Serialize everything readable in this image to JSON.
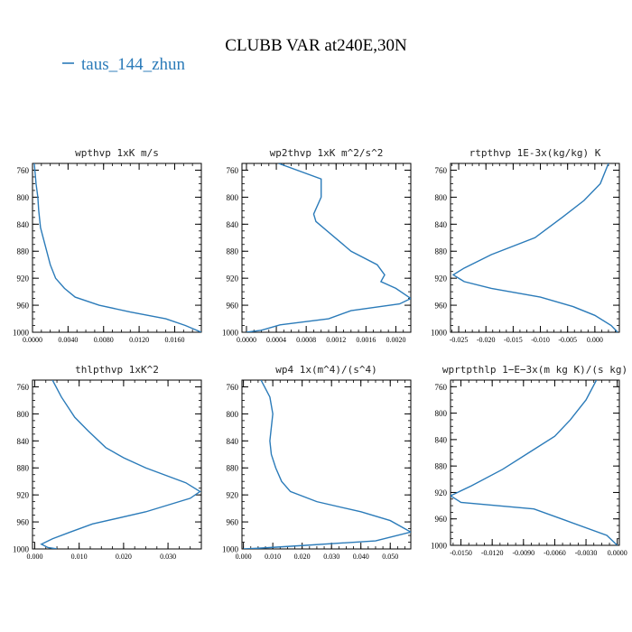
{
  "figure": {
    "title": "CLUBB VAR at240E,30N",
    "legend": {
      "label": "taus_144_zhun",
      "color": "#2b7bb9",
      "placement": "top-left"
    }
  },
  "chart_data": [
    {
      "type": "line",
      "title": "wpthvp  1xK m/s",
      "ylim": [
        1000,
        750
      ],
      "yticks": [
        {
          "v": 760,
          "label": "760"
        },
        {
          "v": 800,
          "label": "800"
        },
        {
          "v": 840,
          "label": "840"
        },
        {
          "v": 880,
          "label": "880"
        },
        {
          "v": 920,
          "label": "920"
        },
        {
          "v": 960,
          "label": "960"
        },
        {
          "v": 1000,
          "label": "1000"
        }
      ],
      "xlim": [
        0.0,
        0.019
      ],
      "xticks": [
        {
          "v": 0.0,
          "label": "0.0000"
        },
        {
          "v": 0.004,
          "label": "0.0040"
        },
        {
          "v": 0.008,
          "label": "0.0080"
        },
        {
          "v": 0.012,
          "label": "0.0120"
        },
        {
          "v": 0.016,
          "label": "0.0160"
        }
      ],
      "series": [
        {
          "color": "#2b7bb9",
          "x": [
            0.0002,
            0.0004,
            0.0006,
            0.0007,
            0.0009,
            0.0012,
            0.0016,
            0.002,
            0.0026,
            0.0036,
            0.0048,
            0.0075,
            0.011,
            0.015,
            0.0172,
            0.019
          ],
          "y": [
            750,
            780,
            800,
            820,
            845,
            860,
            880,
            900,
            920,
            935,
            948,
            960,
            970,
            980,
            990,
            1000
          ]
        }
      ]
    },
    {
      "type": "line",
      "title": "wp2thvp  1xK m^2/s^2",
      "ylim": [
        1000,
        750
      ],
      "yticks": [
        {
          "v": 760,
          "label": "760"
        },
        {
          "v": 800,
          "label": "800"
        },
        {
          "v": 840,
          "label": "840"
        },
        {
          "v": 880,
          "label": "880"
        },
        {
          "v": 920,
          "label": "920"
        },
        {
          "v": 960,
          "label": "960"
        },
        {
          "v": 1000,
          "label": "1000"
        }
      ],
      "xlim": [
        -6e-05,
        0.0022
      ],
      "xticks": [
        {
          "v": 0.0,
          "label": "0.0000"
        },
        {
          "v": 0.0004,
          "label": "0.0004"
        },
        {
          "v": 0.0008,
          "label": "0.0008"
        },
        {
          "v": 0.0012,
          "label": "0.0012"
        },
        {
          "v": 0.0016,
          "label": "0.0016"
        },
        {
          "v": 0.002,
          "label": "0.0020"
        }
      ],
      "series": [
        {
          "color": "#2b7bb9",
          "x": [
            0.00043,
            0.001,
            0.001,
            0.0009,
            0.00093,
            0.0014,
            0.00175,
            0.00185,
            0.0018,
            0.002,
            0.0022,
            0.00205,
            0.0014,
            0.0011,
            0.00045,
            0.0002,
            0.0
          ],
          "y": [
            750,
            773,
            800,
            825,
            836,
            880,
            900,
            915,
            925,
            935,
            950,
            958,
            968,
            980,
            989,
            997,
            1000
          ]
        }
      ]
    },
    {
      "type": "line",
      "title": "rtpthvp  1E-3x(kg/kg) K",
      "ylim": [
        1000,
        750
      ],
      "yticks": [
        {
          "v": 760,
          "label": "760"
        },
        {
          "v": 800,
          "label": "800"
        },
        {
          "v": 840,
          "label": "840"
        },
        {
          "v": 880,
          "label": "880"
        },
        {
          "v": 920,
          "label": "920"
        },
        {
          "v": 960,
          "label": "960"
        },
        {
          "v": 1000,
          "label": "1000"
        }
      ],
      "xlim": [
        -0.0265,
        0.0045
      ],
      "xticks": [
        {
          "v": -0.025,
          "label": "-0.025"
        },
        {
          "v": -0.02,
          "label": "-0.020"
        },
        {
          "v": -0.015,
          "label": "-0.015"
        },
        {
          "v": -0.01,
          "label": "-0.010"
        },
        {
          "v": -0.005,
          "label": "-0.005"
        },
        {
          "v": 0.0,
          "label": "0.000"
        }
      ],
      "series": [
        {
          "color": "#2b7bb9",
          "x": [
            0.0025,
            0.001,
            -0.002,
            -0.006,
            -0.011,
            -0.019,
            -0.024,
            -0.026,
            -0.024,
            -0.019,
            -0.01,
            -0.004,
            0.0,
            0.003,
            0.0042
          ],
          "y": [
            750,
            780,
            805,
            830,
            860,
            885,
            905,
            915,
            925,
            935,
            948,
            962,
            975,
            990,
            1000
          ]
        }
      ]
    },
    {
      "type": "line",
      "title": "thlpthvp  1xK^2",
      "ylim": [
        1000,
        750
      ],
      "yticks": [
        {
          "v": 760,
          "label": "760"
        },
        {
          "v": 800,
          "label": "800"
        },
        {
          "v": 840,
          "label": "840"
        },
        {
          "v": 880,
          "label": "880"
        },
        {
          "v": 920,
          "label": "920"
        },
        {
          "v": 960,
          "label": "960"
        },
        {
          "v": 1000,
          "label": "1000"
        }
      ],
      "xlim": [
        -0.0005,
        0.0375
      ],
      "xticks": [
        {
          "v": 0.0,
          "label": "0.000"
        },
        {
          "v": 0.01,
          "label": "0.010"
        },
        {
          "v": 0.02,
          "label": "0.020"
        },
        {
          "v": 0.03,
          "label": "0.030"
        }
      ],
      "series": [
        {
          "color": "#2b7bb9",
          "x": [
            0.004,
            0.006,
            0.009,
            0.012,
            0.016,
            0.02,
            0.025,
            0.034,
            0.0372,
            0.035,
            0.03,
            0.025,
            0.013,
            0.008,
            0.004,
            0.0015,
            0.003,
            0.005
          ],
          "y": [
            750,
            775,
            805,
            825,
            850,
            865,
            880,
            902,
            915,
            925,
            935,
            945,
            963,
            975,
            985,
            993,
            998,
            1000
          ]
        }
      ]
    },
    {
      "type": "line",
      "title": "wp4  1x(m^4)/(s^4)",
      "ylim": [
        1000,
        750
      ],
      "yticks": [
        {
          "v": 760,
          "label": "760"
        },
        {
          "v": 800,
          "label": "800"
        },
        {
          "v": 840,
          "label": "840"
        },
        {
          "v": 880,
          "label": "880"
        },
        {
          "v": 920,
          "label": "920"
        },
        {
          "v": 960,
          "label": "960"
        },
        {
          "v": 1000,
          "label": "1000"
        }
      ],
      "xlim": [
        -0.0005,
        0.057
      ],
      "xticks": [
        {
          "v": 0.0,
          "label": "0.000"
        },
        {
          "v": 0.01,
          "label": "0.010"
        },
        {
          "v": 0.02,
          "label": "0.020"
        },
        {
          "v": 0.03,
          "label": "0.030"
        },
        {
          "v": 0.04,
          "label": "0.040"
        },
        {
          "v": 0.05,
          "label": "0.050"
        }
      ],
      "series": [
        {
          "color": "#2b7bb9",
          "x": [
            0.006,
            0.009,
            0.01,
            0.0095,
            0.009,
            0.0095,
            0.011,
            0.013,
            0.016,
            0.025,
            0.04,
            0.05,
            0.057,
            0.045,
            0.02,
            0.005,
            0.0
          ],
          "y": [
            750,
            775,
            800,
            820,
            840,
            860,
            880,
            900,
            915,
            930,
            945,
            958,
            975,
            988,
            995,
            999,
            1000
          ]
        }
      ]
    },
    {
      "type": "line",
      "title": "wprtpthlp  1−E−3x(m kg K)/(s kg)",
      "ylim": [
        1000,
        750
      ],
      "yticks": [
        {
          "v": 760,
          "label": "760"
        },
        {
          "v": 800,
          "label": "800"
        },
        {
          "v": 840,
          "label": "840"
        },
        {
          "v": 880,
          "label": "880"
        },
        {
          "v": 920,
          "label": "920"
        },
        {
          "v": 960,
          "label": "960"
        },
        {
          "v": 1000,
          "label": "1000"
        }
      ],
      "xlim": [
        -0.016,
        0.0002
      ],
      "xticks": [
        {
          "v": -0.015,
          "label": "-0.0150"
        },
        {
          "v": -0.012,
          "label": "-0.0120"
        },
        {
          "v": -0.009,
          "label": "-0.0090"
        },
        {
          "v": -0.006,
          "label": "-0.0060"
        },
        {
          "v": -0.003,
          "label": "-0.0030"
        },
        {
          "v": 0.0,
          "label": "0.0000"
        }
      ],
      "series": [
        {
          "color": "#2b7bb9",
          "x": [
            -0.002,
            -0.003,
            -0.0045,
            -0.006,
            -0.0085,
            -0.011,
            -0.014,
            -0.016,
            -0.015,
            -0.008,
            -0.005,
            -0.001,
            0.0
          ],
          "y": [
            750,
            780,
            810,
            835,
            860,
            885,
            910,
            925,
            935,
            945,
            962,
            985,
            1000
          ]
        }
      ]
    }
  ]
}
